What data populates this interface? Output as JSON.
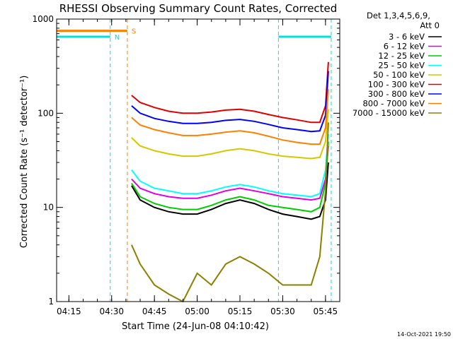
{
  "chart_data": {
    "type": "line",
    "title": "RHESSI Observing Summary Count Rates, Corrected",
    "xlabel": "Start Time (24-Jun-08 04:10:42)",
    "ylabel": "Corrected Count Rate (s⁻¹ detector⁻¹)",
    "y_scale": "log",
    "ylim": [
      1,
      1000
    ],
    "xlim": [
      "04:10:42",
      "05:50:00"
    ],
    "x_ticks": [
      "04:15",
      "04:30",
      "04:45",
      "05:00",
      "05:15",
      "05:30",
      "05:45"
    ],
    "y_ticks": [
      "1",
      "10",
      "100",
      "1000"
    ],
    "legend_header": [
      "Det 1,3,4,5,6,9,",
      "Att 0"
    ],
    "legend_position": "top-right",
    "footer_date": "14-Oct-2021 19:50",
    "grid": false,
    "flags": [
      {
        "label": "N",
        "color": "#00e0e0",
        "segments": [
          [
            "04:10:42",
            "04:29:30"
          ],
          [
            "05:28:30",
            "05:47:00"
          ]
        ],
        "level": 650
      },
      {
        "label": "S",
        "color": "#ff8000",
        "segments": [
          [
            "04:10:42",
            "04:35:30"
          ]
        ],
        "level": 750
      }
    ],
    "event_lines": [
      {
        "time": "04:29:30",
        "color": "#00e0e0"
      },
      {
        "time": "04:35:30",
        "color": "#ff8000"
      },
      {
        "time": "05:28:30",
        "color": "#00e0e0"
      },
      {
        "time": "05:47:00",
        "color": "#00e0e0"
      }
    ],
    "x": [
      "04:37",
      "04:40",
      "04:45",
      "04:50",
      "04:55",
      "05:00",
      "05:05",
      "05:10",
      "05:15",
      "05:20",
      "05:25",
      "05:30",
      "05:35",
      "05:40",
      "05:43",
      "05:45",
      "05:46"
    ],
    "series": [
      {
        "name": "3 - 6 keV",
        "color": "#000000",
        "values": [
          17,
          12,
          10,
          9,
          8.5,
          8.5,
          9.5,
          11,
          12,
          11,
          9.5,
          8.5,
          8,
          7.5,
          8,
          12,
          30
        ]
      },
      {
        "name": "6 - 12 keV",
        "color": "#e000e0",
        "values": [
          20,
          16,
          14,
          13,
          12.5,
          12.5,
          13.5,
          15,
          16,
          15,
          14,
          13,
          12.5,
          12,
          12.5,
          20,
          45
        ]
      },
      {
        "name": "12 - 25 keV",
        "color": "#00cc00",
        "values": [
          18,
          13,
          11,
          10,
          9.5,
          9.5,
          10.5,
          12,
          13,
          12,
          10.5,
          10,
          9.5,
          9,
          10,
          18,
          50
        ]
      },
      {
        "name": "25 - 50 keV",
        "color": "#00ffff",
        "values": [
          25,
          19,
          16,
          15,
          14,
          14,
          15,
          16.5,
          17.5,
          16.5,
          15,
          14,
          13.5,
          13,
          14,
          25,
          60
        ]
      },
      {
        "name": "50 - 100 keV",
        "color": "#d4c800",
        "values": [
          55,
          45,
          40,
          37,
          35,
          35,
          37,
          40,
          42,
          40,
          37,
          35,
          34,
          33,
          34,
          50,
          110
        ]
      },
      {
        "name": "100 - 300 keV",
        "color": "#e00000",
        "values": [
          155,
          130,
          115,
          105,
          100,
          100,
          103,
          108,
          110,
          105,
          97,
          90,
          85,
          80,
          80,
          120,
          350
        ]
      },
      {
        "name": "300 - 800 keV",
        "color": "#0000ff",
        "values": [
          120,
          100,
          88,
          82,
          78,
          78,
          80,
          84,
          86,
          82,
          76,
          70,
          67,
          64,
          65,
          95,
          280
        ]
      },
      {
        "name": "800 - 7000 keV",
        "color": "#ff8000",
        "values": [
          90,
          75,
          67,
          62,
          58,
          58,
          60,
          63,
          65,
          62,
          57,
          52,
          49,
          47,
          47,
          70,
          180
        ]
      },
      {
        "name": "7000 - 15000 keV",
        "color": "#8b8000",
        "values": [
          4,
          2.5,
          1.5,
          1.2,
          1,
          2,
          1.5,
          2.5,
          3,
          2.5,
          2,
          1.5,
          1.5,
          1.5,
          3,
          15,
          80
        ]
      }
    ]
  }
}
